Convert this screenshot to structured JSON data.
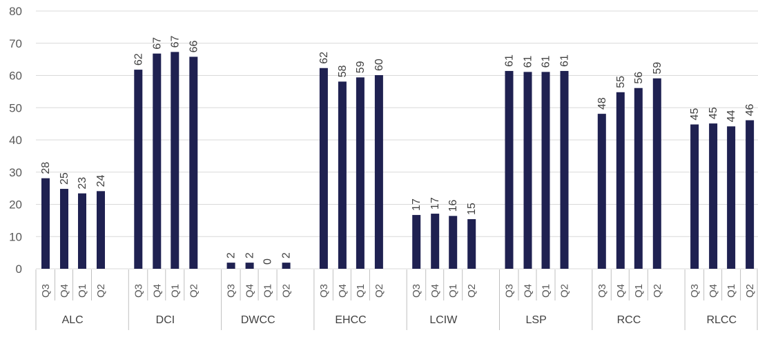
{
  "chart_data": {
    "type": "bar",
    "title": "",
    "xlabel": "",
    "ylabel": "",
    "ylim": [
      0,
      80
    ],
    "yticks": [
      0,
      10,
      20,
      30,
      40,
      50,
      60,
      70,
      80
    ],
    "grid": "horizontal",
    "bar_color": "#1f2151",
    "groups": [
      {
        "name": "ALC",
        "quarters": [
          "Q3",
          "Q4",
          "Q1",
          "Q2"
        ],
        "values": [
          28.1,
          24.8,
          23.4,
          24.1
        ],
        "labels": [
          "28",
          "25",
          "23",
          "24"
        ]
      },
      {
        "name": "DCI",
        "quarters": [
          "Q3",
          "Q4",
          "Q1",
          "Q2"
        ],
        "values": [
          61.8,
          66.8,
          67.3,
          65.8
        ],
        "labels": [
          "62",
          "67",
          "67",
          "66"
        ]
      },
      {
        "name": "DWCC",
        "quarters": [
          "Q3",
          "Q4",
          "Q1",
          "Q2"
        ],
        "values": [
          1.9,
          1.9,
          0,
          1.9
        ],
        "labels": [
          "2",
          "2",
          "0",
          "2"
        ]
      },
      {
        "name": "EHCC",
        "quarters": [
          "Q3",
          "Q4",
          "Q1",
          "Q2"
        ],
        "values": [
          62.3,
          58.1,
          59.4,
          60.1
        ],
        "labels": [
          "62",
          "58",
          "59",
          "60"
        ]
      },
      {
        "name": "LCIW",
        "quarters": [
          "Q3",
          "Q4",
          "Q1",
          "Q2"
        ],
        "values": [
          16.7,
          17.1,
          16.4,
          15.4
        ],
        "labels": [
          "17",
          "17",
          "16",
          "15"
        ]
      },
      {
        "name": "LSP",
        "quarters": [
          "Q3",
          "Q4",
          "Q1",
          "Q2"
        ],
        "values": [
          61.4,
          61.1,
          61.1,
          61.4
        ],
        "labels": [
          "61",
          "61",
          "61",
          "61"
        ]
      },
      {
        "name": "RCC",
        "quarters": [
          "Q3",
          "Q4",
          "Q1",
          "Q2"
        ],
        "values": [
          48.1,
          54.8,
          56.1,
          59.1
        ],
        "labels": [
          "48",
          "55",
          "56",
          "59"
        ]
      },
      {
        "name": "RLCC",
        "quarters": [
          "Q3",
          "Q4",
          "Q1",
          "Q2"
        ],
        "values": [
          44.8,
          45.1,
          44.2,
          46.1
        ],
        "labels": [
          "45",
          "45",
          "44",
          "46"
        ]
      }
    ]
  }
}
